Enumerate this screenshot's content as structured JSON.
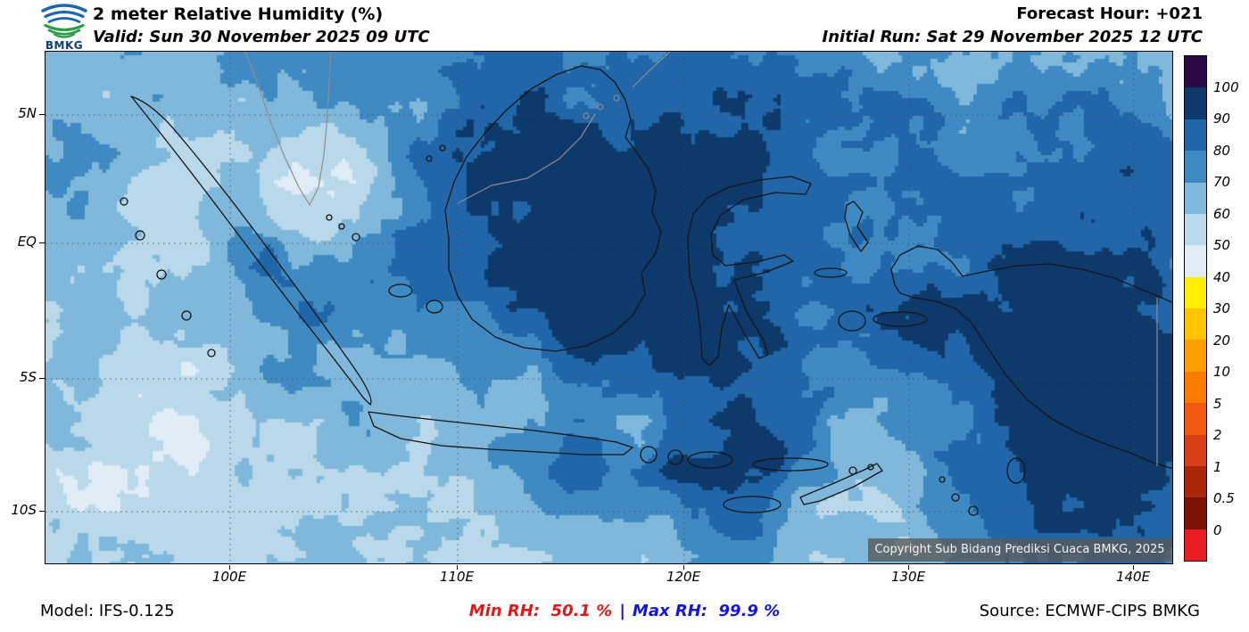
{
  "header": {
    "logo_text": "BMKG",
    "title": "2 meter Relative Humidity (%)",
    "valid": "Valid: Sun 30 November 2025 09 UTC",
    "forecast_hour": "Forecast Hour: +021",
    "initial_run": "Initial Run: Sat 29 November 2025 12 UTC"
  },
  "map": {
    "y_tick_labels": [
      "5N",
      "EQ",
      "5S",
      "10S"
    ],
    "x_tick_labels": [
      "100E",
      "110E",
      "120E",
      "130E",
      "140E"
    ],
    "copyright": "Copyright Sub Bidang Prediksi Cuaca BMKG, 2025"
  },
  "colorbar": {
    "unit": "%",
    "tick_labels": [
      "100",
      "90",
      "80",
      "70",
      "60",
      "50",
      "40",
      "30",
      "20",
      "10",
      "5",
      "2",
      "1",
      "0.5",
      "0"
    ],
    "segment_colors_top_to_bottom": [
      "#2b0a45",
      "#0d3a6a",
      "#2066a8",
      "#3f8ac2",
      "#7fb8da",
      "#b9d8ea",
      "#e0edf6",
      "#fdee00",
      "#fdc500",
      "#fd9e00",
      "#f97b00",
      "#ef5a10",
      "#d8401a",
      "#a82808",
      "#7c1204",
      "#e81c23"
    ]
  },
  "footer": {
    "model": "Model: IFS-0.125",
    "min_rh_label": "Min RH:",
    "min_rh_value": "50.1 %",
    "separator": "|",
    "max_rh_label": "Max RH:",
    "max_rh_value": "99.9 %",
    "min_color": "#e01818",
    "max_color": "#1414dc",
    "source": "Source: ECMWF-CIPS BMKG"
  },
  "chart_data": {
    "type": "heatmap",
    "title": "2 meter Relative Humidity (%)",
    "x_tick_labels": [
      "100E",
      "110E",
      "120E",
      "130E",
      "140E"
    ],
    "y_tick_labels": [
      "5N",
      "EQ",
      "5S",
      "10S"
    ],
    "color_levels": [
      0,
      0.5,
      1,
      2,
      5,
      10,
      20,
      30,
      40,
      50,
      60,
      70,
      80,
      90,
      100
    ],
    "min_rh_percent": 50.1,
    "max_rh_percent": 99.9,
    "legend_position": "right"
  }
}
